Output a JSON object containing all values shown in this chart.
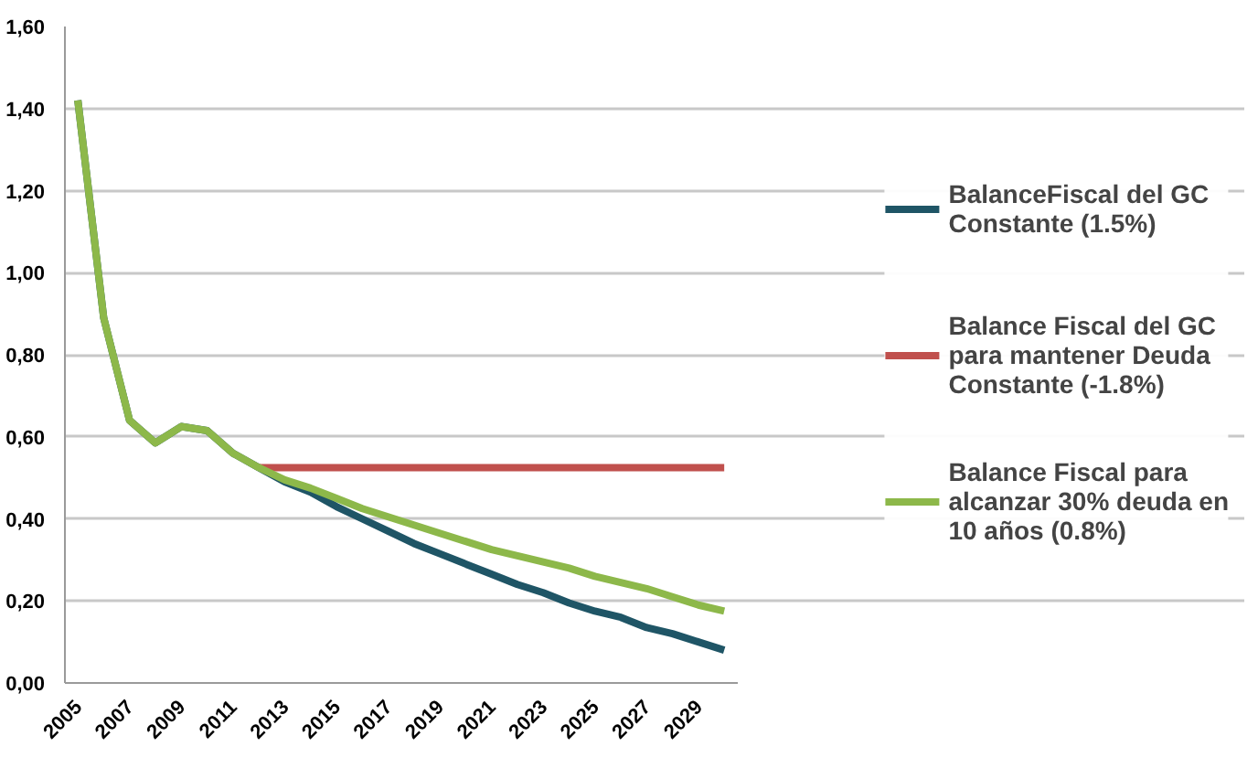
{
  "chart_data": {
    "type": "line",
    "categories": [
      "2005",
      null,
      "2007",
      null,
      "2009",
      null,
      "2011",
      null,
      "2013",
      null,
      "2015",
      null,
      "2017",
      null,
      "2019",
      null,
      "2021",
      null,
      "2023",
      null,
      "2025",
      null,
      "2027",
      null,
      "2029",
      null
    ],
    "series": [
      {
        "name": "BalanceFiscal del GC Constante (1.5%)",
        "color": "#1f5566",
        "values": [
          1.42,
          0.89,
          0.64,
          0.585,
          0.625,
          0.615,
          0.56,
          0.525,
          0.49,
          0.465,
          0.43,
          0.4,
          0.37,
          0.34,
          0.315,
          0.29,
          0.265,
          0.24,
          0.22,
          0.195,
          0.175,
          0.16,
          0.135,
          0.12,
          0.1,
          0.08
        ]
      },
      {
        "name": "Balance Fiscal del GC para mantener Deuda Constante (-1.8%)",
        "color": "#c0504d",
        "values": [
          null,
          null,
          null,
          null,
          null,
          null,
          null,
          0.525,
          0.525,
          0.525,
          0.525,
          0.525,
          0.525,
          0.525,
          0.525,
          0.525,
          0.525,
          0.525,
          0.525,
          0.525,
          0.525,
          0.525,
          0.525,
          0.525,
          0.525,
          0.525
        ]
      },
      {
        "name": "Balance Fiscal para alcanzar 30% deuda en 10 años (0.8%)",
        "color": "#8db84a",
        "values": [
          1.42,
          0.89,
          0.64,
          0.585,
          0.625,
          0.615,
          0.56,
          0.525,
          0.495,
          0.475,
          0.45,
          0.425,
          0.405,
          0.385,
          0.365,
          0.345,
          0.325,
          0.31,
          0.295,
          0.28,
          0.26,
          0.245,
          0.23,
          0.21,
          0.19,
          0.175
        ]
      }
    ],
    "ylim": [
      0,
      1.6
    ],
    "yticks": [
      {
        "value": 0,
        "label": "0,00"
      },
      {
        "value": 0.2,
        "label": "0,20"
      },
      {
        "value": 0.4,
        "label": "0,40"
      },
      {
        "value": 0.6,
        "label": "0,60"
      },
      {
        "value": 0.8,
        "label": "0,80"
      },
      {
        "value": 1.0,
        "label": "1,00"
      },
      {
        "value": 1.2,
        "label": "1,20"
      },
      {
        "value": 1.4,
        "label": "1,40"
      },
      {
        "value": 1.6,
        "label": "1,60"
      }
    ],
    "grid": "y",
    "legend": "right",
    "line_style": "solid"
  }
}
